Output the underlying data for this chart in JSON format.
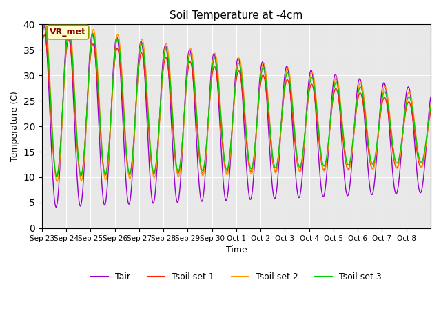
{
  "title": "Soil Temperature at -4cm",
  "xlabel": "Time",
  "ylabel": "Temperature (C)",
  "ylim": [
    0,
    40
  ],
  "yticks": [
    0,
    5,
    10,
    15,
    20,
    25,
    30,
    35,
    40
  ],
  "xtick_labels": [
    "Sep 23",
    "Sep 24",
    "Sep 25",
    "Sep 26",
    "Sep 27",
    "Sep 28",
    "Sep 29",
    "Sep 30",
    "Oct 1",
    "Oct 2",
    "Oct 3",
    "Oct 4",
    "Oct 5",
    "Oct 6",
    "Oct 7",
    "Oct 8"
  ],
  "annotation_text": "VR_met",
  "annotation_color": "#8B0000",
  "annotation_bg": "#FFFFCC",
  "bg_color": "#E8E8E8",
  "line_colors": {
    "Tair": "#9900CC",
    "Tsoil set 1": "#FF2200",
    "Tsoil set 2": "#FF9900",
    "Tsoil set 3": "#00CC00"
  },
  "legend_labels": [
    "Tair",
    "Tsoil set 1",
    "Tsoil set 2",
    "Tsoil set 3"
  ]
}
